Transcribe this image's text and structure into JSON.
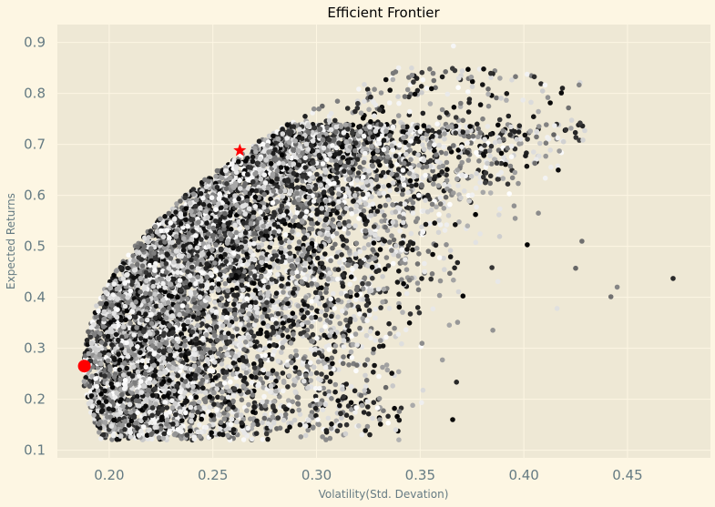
{
  "chart_data": {
    "type": "scatter",
    "title": "Efficient Frontier",
    "xlabel": "Volatility(Std. Devation)",
    "ylabel": "Expected Returns",
    "xlim": [
      0.175,
      0.49
    ],
    "ylim": [
      0.085,
      0.935
    ],
    "xticks": [
      0.2,
      0.25,
      0.3,
      0.35,
      0.4,
      0.45
    ],
    "xtick_labels": [
      "0.20",
      "0.25",
      "0.30",
      "0.35",
      "0.40",
      "0.45"
    ],
    "yticks": [
      0.1,
      0.2,
      0.3,
      0.4,
      0.5,
      0.6,
      0.7,
      0.8,
      0.9
    ],
    "ytick_labels": [
      "0.1",
      "0.2",
      "0.3",
      "0.4",
      "0.5",
      "0.6",
      "0.7",
      "0.8",
      "0.9"
    ],
    "grid": true,
    "colors": {
      "background": "#fdf6e3",
      "plot_area": "#eee8d5",
      "grid": "#fdf6e3",
      "marker_highlight": "#ff0000"
    },
    "simulation": {
      "num_portfolios": 9000,
      "colormap": "grayscale",
      "min_volatility": 0.187,
      "frontier_return_range": [
        0.13,
        0.69
      ],
      "typical_volatility_range": [
        0.19,
        0.39
      ],
      "outliers": [
        {
          "x": 0.366,
          "y": 0.893
        },
        {
          "x": 0.472,
          "y": 0.437
        },
        {
          "x": 0.445,
          "y": 0.42
        },
        {
          "x": 0.442,
          "y": 0.401
        },
        {
          "x": 0.428,
          "y": 0.51
        },
        {
          "x": 0.425,
          "y": 0.457
        },
        {
          "x": 0.416,
          "y": 0.378
        },
        {
          "x": 0.407,
          "y": 0.565
        },
        {
          "x": 0.393,
          "y": 0.603
        },
        {
          "x": 0.384,
          "y": 0.638
        }
      ]
    },
    "min_volatility_portfolio": {
      "x": 0.188,
      "y": 0.265,
      "marker": "circle"
    },
    "max_sharpe_portfolio": {
      "x": 0.263,
      "y": 0.688,
      "marker": "star"
    }
  }
}
